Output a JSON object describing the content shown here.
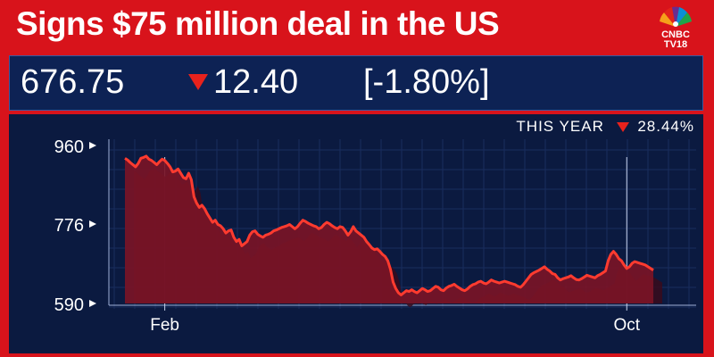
{
  "headline": "Signs $75 million deal in the US",
  "logo": {
    "line1": "CNBC",
    "line2": "TV18"
  },
  "ticker": {
    "price": "676.75",
    "change": "12.40",
    "change_pct": "[-1.80%]",
    "direction": "down"
  },
  "ytd": {
    "label": "THIS YEAR",
    "value": "28.44%",
    "direction": "down"
  },
  "colors": {
    "accent_red": "#d8131b",
    "panel_navy": "#0d2254",
    "line_red": "#ff3b2f",
    "fill_red": "#7a1426"
  },
  "chart_data": {
    "type": "area",
    "title": "",
    "xlabel": "",
    "ylabel": "",
    "ylim": [
      590,
      960
    ],
    "yticks": [
      960,
      776,
      590
    ],
    "xticks": [
      {
        "label": "Feb",
        "index": 15
      },
      {
        "label": "Oct",
        "index": 189
      }
    ],
    "n_points": 200,
    "series": [
      {
        "values": [
          930,
          926,
          920,
          915,
          910,
          918,
          930,
          932,
          935,
          928,
          925,
          920,
          915,
          922,
          928,
          925,
          918,
          910,
          898,
          900,
          905,
          895,
          885,
          882,
          895,
          880,
          840,
          825,
          815,
          820,
          812,
          800,
          790,
          780,
          785,
          775,
          772,
          765,
          755,
          760,
          762,
          745,
          735,
          740,
          725,
          730,
          735,
          750,
          758,
          760,
          752,
          748,
          745,
          750,
          752,
          755,
          760,
          762,
          765,
          768,
          770,
          772,
          775,
          770,
          765,
          770,
          778,
          785,
          782,
          778,
          775,
          772,
          770,
          765,
          768,
          775,
          780,
          777,
          772,
          768,
          765,
          770,
          768,
          760,
          750,
          758,
          770,
          760,
          755,
          750,
          745,
          735,
          728,
          720,
          716,
          718,
          712,
          705,
          700,
          690,
          670,
          640,
          625,
          615,
          610,
          615,
          620,
          618,
          622,
          618,
          615,
          620,
          625,
          622,
          618,
          620,
          625,
          630,
          628,
          622,
          620,
          626,
          630,
          632,
          635,
          630,
          626,
          622,
          620,
          624,
          630,
          634,
          636,
          640,
          642,
          638,
          636,
          640,
          645,
          642,
          640,
          638,
          640,
          642,
          640,
          638,
          636,
          634,
          630,
          628,
          634,
          642,
          650,
          658,
          662,
          665,
          668,
          672,
          676,
          670,
          666,
          660,
          658,
          650,
          645,
          648,
          650,
          652,
          655,
          650,
          646,
          645,
          648,
          652,
          656,
          654,
          652,
          650,
          655,
          658,
          662,
          666,
          690,
          705,
          712,
          705,
          695,
          690,
          680,
          672,
          676,
          684,
          688,
          686,
          684,
          682,
          680,
          676,
          672,
          668
        ]
      }
    ]
  }
}
